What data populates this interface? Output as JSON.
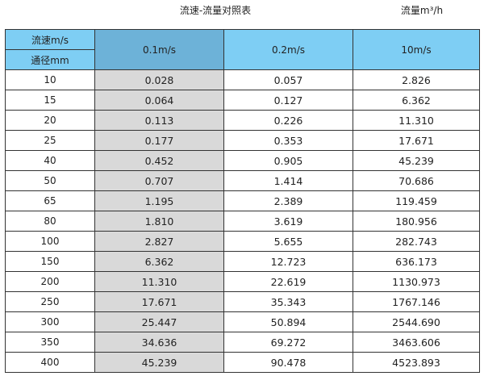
{
  "title": "流速-流量对照表",
  "unit_label": "流量m³/h",
  "colors": {
    "header": "#7ecef4",
    "header_selected": "#6db2d8",
    "highlight_column": "#d9d9d9"
  },
  "header": {
    "row_label_top": "流速m/s",
    "row_label_bottom": "通径mm",
    "columns": [
      "0.1m/s",
      "0.2m/s",
      "10m/s"
    ]
  },
  "rows": [
    [
      "10",
      "0.028",
      "0.057",
      "2.826"
    ],
    [
      "15",
      "0.064",
      "0.127",
      "6.362"
    ],
    [
      "20",
      "0.113",
      "0.226",
      "11.310"
    ],
    [
      "25",
      "0.177",
      "0.353",
      "17.671"
    ],
    [
      "40",
      "0.452",
      "0.905",
      "45.239"
    ],
    [
      "50",
      "0.707",
      "1.414",
      "70.686"
    ],
    [
      "65",
      "1.195",
      "2.389",
      "119.459"
    ],
    [
      "80",
      "1.810",
      "3.619",
      "180.956"
    ],
    [
      "100",
      "2.827",
      "5.655",
      "282.743"
    ],
    [
      "150",
      "6.362",
      "12.723",
      "636.173"
    ],
    [
      "200",
      "11.310",
      "22.619",
      "1130.973"
    ],
    [
      "250",
      "17.671",
      "35.343",
      "1767.146"
    ],
    [
      "300",
      "25.447",
      "50.894",
      "2544.690"
    ],
    [
      "350",
      "34.636",
      "69.272",
      "3463.606"
    ],
    [
      "400",
      "45.239",
      "90.478",
      "4523.893"
    ]
  ]
}
